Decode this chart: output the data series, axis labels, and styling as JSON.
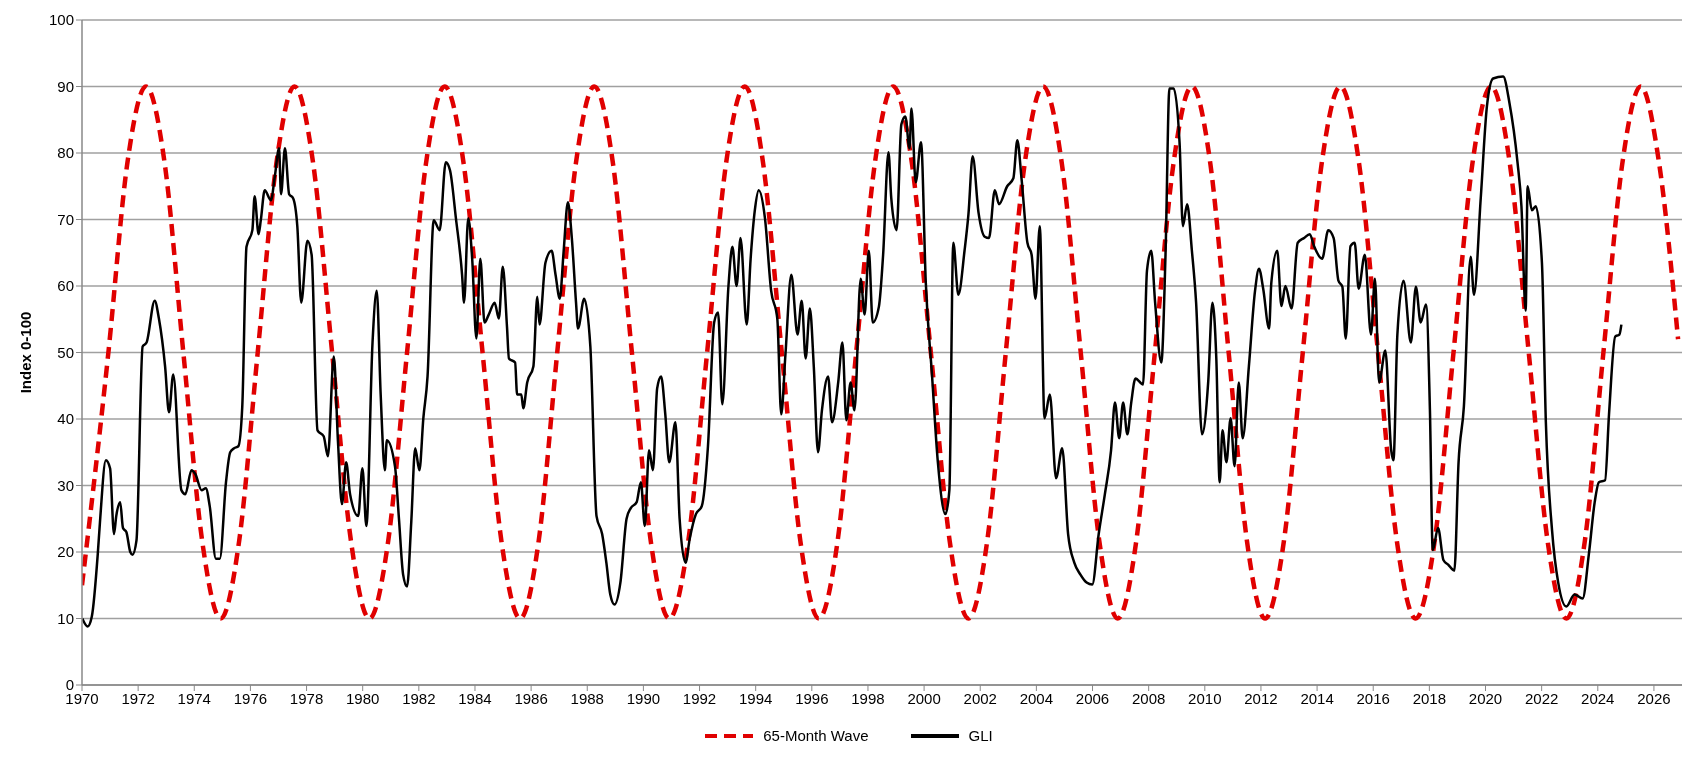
{
  "chart_data": {
    "type": "line",
    "ylabel": "Index 0-100",
    "xlim": [
      1970,
      2027
    ],
    "xticks": [
      1970,
      1972,
      1974,
      1976,
      1978,
      1980,
      1982,
      1984,
      1986,
      1988,
      1990,
      1992,
      1994,
      1996,
      1998,
      2000,
      2002,
      2004,
      2006,
      2008,
      2010,
      2012,
      2014,
      2016,
      2018,
      2020,
      2022,
      2024,
      2026
    ],
    "ylim": [
      0,
      100
    ],
    "yticks": [
      0,
      10,
      20,
      30,
      40,
      50,
      60,
      70,
      80,
      90,
      100
    ],
    "grid": "y",
    "legend": "bottom",
    "series": [
      {
        "name": "65-Month Wave",
        "color": "#e00000",
        "line_style": "dashed",
        "x": [
          1970,
          1970.94,
          1971.61,
          1972.28,
          1972.95,
          1973.61,
          1974.28,
          1974.94,
          1975.6,
          1976.26,
          1976.92,
          1977.57,
          1978.24,
          1978.91,
          1979.58,
          1980.24,
          1980.91,
          1981.58,
          1982.25,
          1982.92,
          1983.6,
          1984.27,
          1984.94,
          1985.61,
          1986.27,
          1986.93,
          1987.59,
          1988.25,
          1988.92,
          1989.59,
          1990.26,
          1990.92,
          1991.6,
          1992.27,
          1992.94,
          1993.61,
          1994.27,
          1994.93,
          1995.59,
          1996.25,
          1996.92,
          1997.58,
          1998.24,
          1998.9,
          1999.57,
          2000.24,
          2000.91,
          2001.58,
          2002.25,
          2002.91,
          2003.58,
          2004.24,
          2004.91,
          2005.58,
          2006.24,
          2006.9,
          2007.56,
          2008.22,
          2008.88,
          2009.54,
          2010.2,
          2010.85,
          2011.5,
          2012.15,
          2012.82,
          2013.49,
          2014.16,
          2014.83,
          2015.5,
          2016.17,
          2016.84,
          2017.51,
          2018.19,
          2018.86,
          2019.53,
          2020.2,
          2020.87,
          2021.54,
          2022.21,
          2022.88,
          2023.54,
          2024.2,
          2024.87,
          2025.53,
          2026.19,
          2026.86
        ],
        "values": [
          15,
          50,
          78.3,
          90,
          78.3,
          50,
          21.7,
          10,
          21.7,
          50,
          78.3,
          90,
          78.3,
          50,
          21.7,
          10,
          21.7,
          50,
          78.3,
          90,
          78.3,
          50,
          21.7,
          10,
          21.7,
          50,
          78.3,
          90,
          78.3,
          50,
          21.7,
          10,
          21.7,
          50,
          78.3,
          90,
          78.3,
          50,
          21.7,
          10,
          21.7,
          50,
          78.3,
          90,
          78.3,
          50,
          21.7,
          10,
          21.7,
          50,
          78.3,
          90,
          78.3,
          50,
          21.7,
          10,
          21.7,
          50,
          78.3,
          90,
          78.3,
          50,
          21.7,
          10,
          21.7,
          50,
          78.3,
          90,
          78.3,
          50,
          21.7,
          10,
          21.7,
          50,
          78.3,
          90,
          78.3,
          50,
          21.7,
          10,
          21.7,
          50,
          78.3,
          90,
          78.3,
          52
        ]
      },
      {
        "name": "GLI",
        "color": "#000000",
        "line_style": "solid",
        "x": [
          1970.01,
          1970.2,
          1970.35,
          1970.56,
          1970.64,
          1970.85,
          1971,
          1971.14,
          1971.22,
          1971.36,
          1971.46,
          1971.58,
          1971.72,
          1971.8,
          1971.94,
          1972.16,
          1972.3,
          1972.59,
          1972.74,
          1972.96,
          1973.1,
          1973.25,
          1973.54,
          1973.68,
          1973.9,
          1974.04,
          1974.26,
          1974.41,
          1974.55,
          1974.77,
          1974.91,
          1975.13,
          1975.28,
          1975.42,
          1975.57,
          1975.71,
          1975.86,
          1976.07,
          1976.15,
          1976.29,
          1976.37,
          1976.51,
          1976.73,
          1976.87,
          1977.02,
          1977.09,
          1977.23,
          1977.38,
          1977.52,
          1977.67,
          1977.81,
          1978.03,
          1978.18,
          1978.39,
          1978.61,
          1978.76,
          1978.97,
          1979.12,
          1979.26,
          1979.41,
          1979.55,
          1979.84,
          1979.99,
          1980.13,
          1980.35,
          1980.5,
          1980.64,
          1980.79,
          1980.86,
          1981.15,
          1981.29,
          1981.44,
          1981.58,
          1981.73,
          1981.87,
          1982.02,
          1982.16,
          1982.31,
          1982.53,
          1982.74,
          1982.96,
          1983.11,
          1983.32,
          1983.54,
          1983.61,
          1983.76,
          1983.9,
          1984.05,
          1984.19,
          1984.34,
          1984.49,
          1984.7,
          1984.85,
          1984.99,
          1985.14,
          1985.21,
          1985.43,
          1985.5,
          1985.65,
          1985.72,
          1985.86,
          1986.08,
          1986.22,
          1986.3,
          1986.51,
          1986.73,
          1986.87,
          1987.02,
          1987.16,
          1987.31,
          1987.45,
          1987.6,
          1987.67,
          1987.89,
          1988.11,
          1988.33,
          1988.53,
          1988.68,
          1988.82,
          1988.97,
          1989.18,
          1989.4,
          1989.55,
          1989.76,
          1989.91,
          1990.05,
          1990.2,
          1990.34,
          1990.49,
          1990.63,
          1990.78,
          1990.92,
          1991.14,
          1991.29,
          1991.5,
          1991.65,
          1991.87,
          1992.08,
          1992.3,
          1992.52,
          1992.66,
          1992.81,
          1993.03,
          1993.17,
          1993.32,
          1993.46,
          1993.68,
          1993.82,
          1993.97,
          1994.11,
          1994.33,
          1994.55,
          1994.77,
          1994.91,
          1995.06,
          1995.27,
          1995.49,
          1995.64,
          1995.78,
          1995.93,
          1996.07,
          1996.22,
          1996.36,
          1996.58,
          1996.72,
          1996.94,
          1997.09,
          1997.23,
          1997.38,
          1997.52,
          1997.74,
          1997.88,
          1998.03,
          1998.17,
          1998.39,
          1998.54,
          1998.73,
          1998.83,
          1999.02,
          1999.19,
          1999.33,
          1999.48,
          1999.55,
          1999.7,
          1999.89,
          2000.06,
          2000.28,
          2000.49,
          2000.76,
          2000.9,
          2001.04,
          2001.22,
          2001.44,
          2001.58,
          2001.73,
          2001.94,
          2002.16,
          2002.31,
          2002.52,
          2002.67,
          2002.96,
          2003.18,
          2003.32,
          2003.47,
          2003.68,
          2003.83,
          2003.97,
          2004.12,
          2004.29,
          2004.48,
          2004.7,
          2004.92,
          2005.13,
          2005.35,
          2005.57,
          2005.79,
          2005.99,
          2006.22,
          2006.44,
          2006.66,
          2006.8,
          2006.95,
          2007.09,
          2007.24,
          2007.38,
          2007.53,
          2007.8,
          2007.94,
          2008.09,
          2008.23,
          2008.45,
          2008.6,
          2008.74,
          2008.89,
          2009.1,
          2009.22,
          2009.37,
          2009.54,
          2009.69,
          2009.9,
          2010.12,
          2010.27,
          2010.41,
          2010.53,
          2010.63,
          2010.77,
          2010.92,
          2011.06,
          2011.21,
          2011.35,
          2011.57,
          2011.79,
          2011.93,
          2012.08,
          2012.29,
          2012.37,
          2012.58,
          2012.73,
          2012.87,
          2013.09,
          2013.31,
          2013.53,
          2013.74,
          2013.89,
          2014.18,
          2014.4,
          2014.59,
          2014.76,
          2014.9,
          2015.02,
          2015.19,
          2015.34,
          2015.48,
          2015.7,
          2015.92,
          2016.06,
          2016.21,
          2016.43,
          2016.64,
          2016.72,
          2016.86,
          2017.08,
          2017.34,
          2017.52,
          2017.69,
          2017.88,
          2018.02,
          2018.12,
          2018.31,
          2018.5,
          2018.67,
          2018.89,
          2019.04,
          2019.23,
          2019.47,
          2019.59,
          2019.83,
          2020.05,
          2020.27,
          2020.63,
          2020.85,
          2021.14,
          2021.28,
          2021.43,
          2021.5,
          2021.65,
          2021.79,
          2022.01,
          2022.15,
          2022.37,
          2022.59,
          2022.88,
          2023.17,
          2023.46,
          2023.68,
          2023.89,
          2024.04,
          2024.26,
          2024.4,
          2024.62,
          2024.77,
          2024.84
        ],
        "values": [
          10,
          8.8,
          10.3,
          19.6,
          24.5,
          33.8,
          32.6,
          22.7,
          25.4,
          27.5,
          23.6,
          23,
          20,
          19.6,
          21.7,
          50.9,
          51.5,
          57.8,
          55.1,
          47.9,
          41,
          46.7,
          29.3,
          28.7,
          32.3,
          31.7,
          29.3,
          29.6,
          26.9,
          19,
          19,
          30.5,
          35,
          35.6,
          35.9,
          41.9,
          65.9,
          68.4,
          73.5,
          67.8,
          69.9,
          74.4,
          72.9,
          76.5,
          80.7,
          73.8,
          80.7,
          73.8,
          73.2,
          69,
          57.5,
          66.8,
          64.7,
          38.3,
          37.4,
          34.4,
          49.4,
          36.5,
          27.2,
          33.5,
          28.7,
          25.4,
          32.6,
          23.9,
          51.5,
          59.3,
          43.7,
          32.3,
          36.8,
          32.9,
          25.1,
          16.6,
          14.8,
          24.5,
          35.6,
          32.3,
          40.1,
          46.4,
          69.9,
          68.4,
          78.6,
          77.4,
          70.2,
          61.7,
          57.5,
          70.2,
          64.1,
          52.1,
          64.1,
          54.5,
          55.7,
          57.5,
          55.1,
          62.9,
          53.9,
          49.1,
          48.5,
          43.7,
          43.7,
          41.6,
          45.5,
          47.9,
          58.4,
          54.2,
          63.5,
          65.3,
          61.7,
          58.1,
          65.3,
          72.6,
          67.2,
          57.5,
          53.6,
          58.1,
          50.9,
          25.4,
          22.7,
          18.4,
          13.6,
          12.1,
          15.4,
          25,
          26.6,
          27.5,
          30.5,
          23.9,
          35.3,
          32.3,
          44.6,
          46.4,
          40.7,
          33.5,
          39.5,
          25,
          18.4,
          22,
          25.7,
          26.9,
          35.9,
          54.5,
          56,
          42.2,
          60,
          65.9,
          60,
          67.2,
          54.2,
          64.1,
          71.4,
          74.4,
          70.2,
          59.3,
          55.1,
          40.7,
          49.7,
          61.7,
          52.7,
          57.8,
          49.1,
          56.6,
          47.9,
          35,
          41.3,
          46.4,
          39.5,
          45.5,
          51.5,
          39.8,
          45.5,
          41.3,
          61.1,
          55.7,
          65.3,
          54.5,
          56.9,
          64.7,
          80.1,
          73.2,
          68.4,
          84.3,
          85.5,
          80.7,
          86.7,
          75.6,
          81.6,
          60.5,
          46.7,
          33.5,
          25.7,
          29.3,
          66.5,
          58.7,
          65.3,
          70.8,
          79.5,
          71,
          67.4,
          67.2,
          74.4,
          72.3,
          75,
          76.2,
          81.9,
          76.2,
          66.5,
          64.7,
          58.1,
          69,
          40.1,
          43.7,
          31.1,
          35.6,
          22.7,
          18.4,
          16.6,
          15.4,
          15.1,
          22.7,
          28.7,
          35.3,
          42.5,
          37.1,
          42.5,
          37.7,
          42.5,
          46.1,
          45.2,
          62.3,
          65.3,
          57.5,
          48.5,
          64.7,
          89.7,
          89.7,
          81.6,
          69,
          72.3,
          65.3,
          57.5,
          37.7,
          45.5,
          57.5,
          49.1,
          30.5,
          38.3,
          33.5,
          40.1,
          32.9,
          45.5,
          37.1,
          47.9,
          59.3,
          62.6,
          59.6,
          53.6,
          60.5,
          65.3,
          57,
          60,
          56.6,
          66.5,
          67.2,
          67.8,
          66,
          64.1,
          68.4,
          67.2,
          60.8,
          59.9,
          52.1,
          66,
          66.5,
          59.6,
          64.7,
          52.7,
          61.1,
          45.5,
          50.3,
          35.3,
          33.8,
          52.7,
          60.8,
          51.5,
          59.9,
          54.5,
          57.2,
          41.3,
          20.3,
          23.6,
          18.8,
          18.1,
          17.2,
          33.5,
          41.9,
          64.4,
          58.7,
          73.2,
          87,
          91.2,
          91.5,
          87.6,
          78.6,
          72,
          56.3,
          75,
          71.4,
          72,
          63.5,
          39.5,
          23.3,
          15.4,
          11.8,
          13.6,
          13,
          19.6,
          27.5,
          30.5,
          30.8,
          40.7,
          52.4,
          52.7,
          54.2
        ]
      }
    ]
  }
}
